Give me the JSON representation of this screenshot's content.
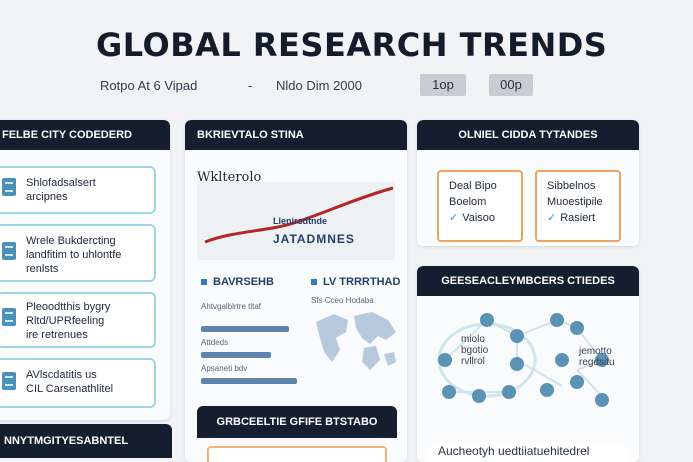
{
  "header": {
    "title": "GLOBAL RESEARCH TRENDS",
    "subtitle_left": "Rotpo At 6 Vipad",
    "subtitle_dash": "-",
    "subtitle_right": "Nldo Dim 2000",
    "chip_1": "1op",
    "chip_2": "00p"
  },
  "left_panel": {
    "title": "FELBE CITY CODEDERD",
    "cards": [
      {
        "line1": "Shlofadsalsert",
        "line2": "arcipnes"
      },
      {
        "line1": "Wrele Bukdercting",
        "line2": "landfitim to uhlontfe",
        "line3": "renlsts"
      },
      {
        "line1": "Pleoodtthis bygry",
        "line2": "Rltd/UPRfeeling",
        "line3": "ire retrenues"
      },
      {
        "line1": "AVlscdatitis us",
        "line2": "CIL Carsenathlitel"
      }
    ],
    "bottom_title": "NNYTMGITYESABNTEL"
  },
  "middle_panel": {
    "title": "BKRIEVTALO STINA",
    "chart_caption": "Wklterolo",
    "legend_1": "Llenirsdtnde",
    "legend_2": "JATADMNES",
    "stat_1": "BAVRSEHB",
    "stat_2": "LV TRRRTHAD",
    "bar_labels": [
      "Ahtvgalblrtre tltaf",
      "Attdeds",
      "Apsaneti bdv"
    ],
    "map_caption": "Sfs Cceo Hodaba",
    "sub_title": "GRBCEELTIE GFIFE BTSTABO",
    "sub_body": ""
  },
  "right_panel": {
    "title": "OLNIEL CIDDA TYTANDES",
    "card_1": {
      "line1": "Deal Bipo",
      "line2": "Boelom",
      "line3": "Vaisoo"
    },
    "card_2": {
      "line1": "Sibbelnos",
      "line2": "Muoestipile",
      "line3": "Rasiert"
    },
    "network_title": "GEESEACLEYMBCERS CTIEDES",
    "network_label_1": "miolo\nbgotio\nrvllrol",
    "network_label_2": "jemotto\nregdsitu",
    "bottom_text": "Aucheotyh uedtiiatuehitedrel"
  },
  "colors": {
    "header_bar": "#141e2e",
    "accent_orange": "#f0a35e",
    "accent_teal": "#9fd6e4",
    "trend_line": "#b3262a"
  }
}
